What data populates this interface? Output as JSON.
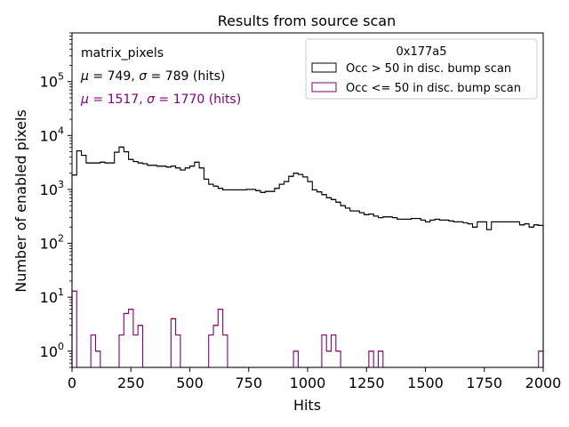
{
  "chart_data": {
    "type": "step-histogram",
    "title": "Results from source scan",
    "xlabel": "Hits",
    "ylabel": "Number of enabled pixels",
    "xlim": [
      0,
      2000
    ],
    "ylim": [
      0.5,
      800000
    ],
    "yscale": "log",
    "bin_width": 20,
    "x_ticks": [
      {
        "value": 0,
        "label": "0"
      },
      {
        "value": 250,
        "label": "250"
      },
      {
        "value": 500,
        "label": "500"
      },
      {
        "value": 750,
        "label": "750"
      },
      {
        "value": 1000,
        "label": "1000"
      },
      {
        "value": 1250,
        "label": "1250"
      },
      {
        "value": 1500,
        "label": "1500"
      },
      {
        "value": 1750,
        "label": "1750"
      },
      {
        "value": 2000,
        "label": "2000"
      }
    ],
    "y_ticks": [
      {
        "value": 1,
        "base": "10",
        "exp": "0"
      },
      {
        "value": 10,
        "base": "10",
        "exp": "1"
      },
      {
        "value": 100,
        "base": "10",
        "exp": "2"
      },
      {
        "value": 1000,
        "base": "10",
        "exp": "3"
      },
      {
        "value": 10000,
        "base": "10",
        "exp": "4"
      },
      {
        "value": 100000,
        "base": "10",
        "exp": "5"
      }
    ],
    "annotations": {
      "name": "matrix_pixels",
      "stats_black": {
        "mu": "749",
        "sigma": "789",
        "unit": "(hits)"
      },
      "stats_purple": {
        "mu": "1517",
        "sigma": "1770",
        "unit": "(hits)"
      }
    },
    "legend": {
      "title": "0x177a5",
      "position": "top-right"
    },
    "series": [
      {
        "name": "Occ > 50 in disc. bump scan",
        "color": "#000000",
        "values": [
          1850,
          5200,
          4300,
          3100,
          3100,
          3100,
          3200,
          3100,
          3100,
          4900,
          6100,
          5000,
          3600,
          3300,
          3100,
          3000,
          2800,
          2800,
          2700,
          2700,
          2600,
          2700,
          2500,
          2300,
          2500,
          2700,
          3200,
          2500,
          1550,
          1250,
          1150,
          1050,
          980,
          980,
          980,
          980,
          980,
          1000,
          1000,
          950,
          880,
          920,
          920,
          1050,
          1250,
          1400,
          1750,
          2000,
          1900,
          1700,
          1400,
          980,
          900,
          800,
          700,
          650,
          580,
          500,
          450,
          400,
          400,
          370,
          340,
          350,
          320,
          300,
          310,
          310,
          300,
          280,
          280,
          280,
          290,
          290,
          270,
          250,
          270,
          280,
          270,
          270,
          260,
          250,
          250,
          240,
          230,
          200,
          250,
          250,
          180,
          250,
          250,
          250,
          250,
          250,
          250,
          220,
          230,
          200,
          220,
          215
        ]
      },
      {
        "name": "Occ <= 50 in disc. bump scan",
        "color": "#800080",
        "values": [
          13,
          0,
          0,
          0,
          2,
          1,
          0,
          0,
          0,
          0,
          2,
          5,
          6,
          2,
          3,
          0,
          0,
          0,
          0,
          0,
          0,
          4,
          2,
          0,
          0,
          0,
          0,
          0,
          0,
          2,
          3,
          6,
          2,
          0,
          0,
          0,
          0,
          0,
          0,
          0,
          0,
          0,
          0,
          0,
          0,
          0,
          0,
          1,
          0,
          0,
          0,
          0,
          0,
          2,
          1,
          2,
          1,
          0,
          0,
          0,
          0,
          0,
          0,
          1,
          0,
          1,
          0,
          0,
          0,
          0,
          0,
          0,
          0,
          0,
          0,
          0,
          0,
          0,
          0,
          0,
          0,
          0,
          0,
          0,
          0,
          0,
          0,
          0,
          0,
          0,
          0,
          0,
          0,
          0,
          0,
          0,
          0,
          0,
          0,
          1
        ]
      }
    ]
  }
}
